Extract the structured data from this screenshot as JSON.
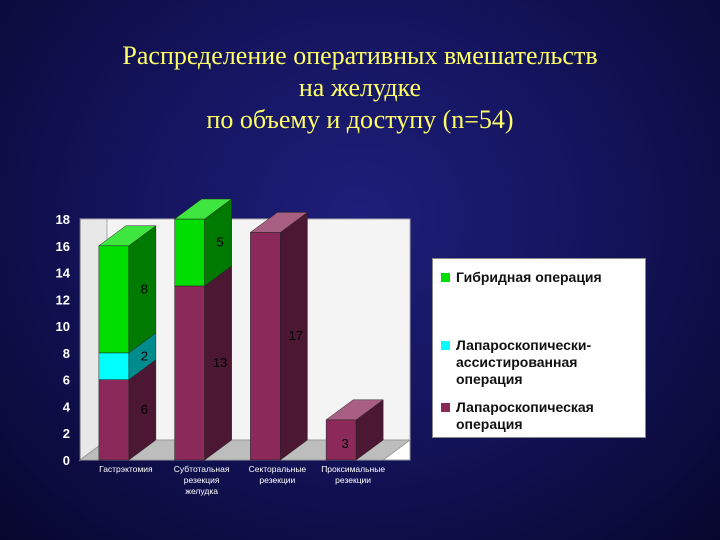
{
  "slide": {
    "title": "Распределение оперативных вмешательств\nна желудке\nпо объему и доступу (n=54)"
  },
  "colors": {
    "hybrid": "#00dd00",
    "lap_assisted": "#00ffff",
    "laparoscopic": "#8b2a5a"
  },
  "chart_data": {
    "type": "bar",
    "stacked": true,
    "categories": [
      "Гастрэктомия",
      "Субтотальная резекция желудка",
      "Секторальные резекции",
      "Проксимальные резекции"
    ],
    "category_lines": [
      [
        "Гастрэктомия"
      ],
      [
        "Субтотальная",
        "резекция",
        "желудка"
      ],
      [
        "Секторальные",
        "резекции"
      ],
      [
        "Проксимальные",
        "резекции"
      ]
    ],
    "series": [
      {
        "name": "Лапароскопическая операция",
        "key": "laparoscopic",
        "values": [
          6,
          13,
          17,
          3
        ]
      },
      {
        "name": "Лапароскопически-ассистированная операция",
        "key": "lap_assisted",
        "values": [
          2,
          0,
          0,
          0
        ]
      },
      {
        "name": "Гибридная операция",
        "key": "hybrid",
        "values": [
          8,
          5,
          0,
          0
        ]
      }
    ],
    "ylim": [
      0,
      18
    ],
    "yticks": [
      "0",
      "2",
      "4",
      "6",
      "8",
      "10",
      "12",
      "14",
      "16",
      "18"
    ],
    "grid": false,
    "legend_position": "right"
  },
  "legend": {
    "items": [
      {
        "label": "Гибридная операция",
        "key": "hybrid"
      },
      {
        "label": "Лапароскопически-\nассистированная\nоперация",
        "key": "lap_assisted"
      },
      {
        "label": "Лапароскопическая\nоперация",
        "key": "laparoscopic"
      }
    ]
  }
}
